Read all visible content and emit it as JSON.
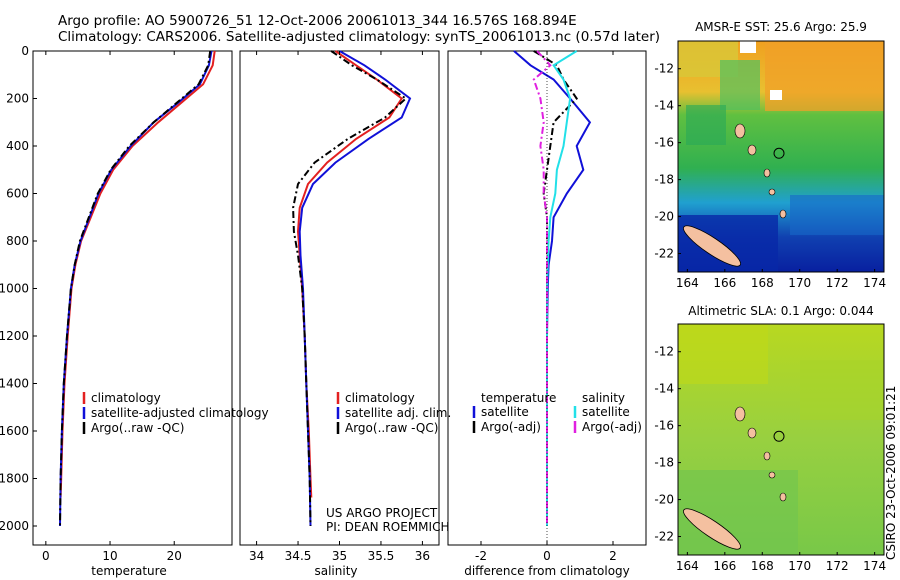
{
  "header": {
    "line1": "Argo profile: AO 5900726_51 12-Oct-2006 20061013_344 16.576S 168.894E",
    "line2": "Climatology: CARS2006. Satellite-adjusted climatology: synTS_20061013.nc (0.57d later)"
  },
  "colors": {
    "red": "#e32020",
    "blue": "#1010d8",
    "black": "#000000",
    "cyan": "#22e0e8",
    "magenta": "#e020e0"
  },
  "chart_data": [
    {
      "type": "line",
      "id": "temperature",
      "xlabel": "temperature",
      "ylabel": "",
      "xlim": [
        -2,
        29
      ],
      "ylim": [
        0,
        2080
      ],
      "y_reversed": true,
      "xticks": [
        0,
        10,
        20
      ],
      "xticklabels": [
        "0",
        "10",
        "20"
      ],
      "yticks": [
        0,
        200,
        400,
        600,
        800,
        1000,
        1200,
        1400,
        1600,
        1800,
        2000
      ],
      "yticklabels": [
        "0",
        "200",
        "400",
        "600",
        "800",
        "1000",
        "1200",
        "1400",
        "1600",
        "1800",
        "2000"
      ],
      "series": [
        {
          "name": "climatology",
          "color": "#e32020",
          "style": "solid",
          "x": [
            26.3,
            26.0,
            24.5,
            21.0,
            17.5,
            13.5,
            10.5,
            8.5,
            7.0,
            5.5,
            4.6,
            4.0,
            3.4,
            2.9,
            2.6,
            2.4,
            2.3
          ],
          "y": [
            0,
            60,
            140,
            220,
            300,
            400,
            500,
            600,
            700,
            800,
            900,
            1000,
            1200,
            1400,
            1600,
            1800,
            1880
          ]
        },
        {
          "name": "satellite-adjusted climatology",
          "color": "#1010d8",
          "style": "solid",
          "x": [
            25.8,
            25.4,
            24.0,
            20.5,
            16.8,
            13.2,
            10.2,
            8.2,
            6.8,
            5.4,
            4.5,
            3.9,
            3.3,
            2.8,
            2.5,
            2.3,
            2.2
          ],
          "y": [
            0,
            60,
            140,
            220,
            300,
            400,
            500,
            600,
            700,
            800,
            900,
            1000,
            1200,
            1400,
            1600,
            1800,
            2000
          ]
        },
        {
          "name": "Argo(..raw -QC)",
          "color": "#000000",
          "style": "dashdot",
          "x": [
            25.6,
            25.3,
            23.8,
            20.3,
            16.8,
            13.0,
            10.1,
            8.1,
            6.7,
            5.3,
            4.5,
            3.9,
            3.3,
            2.8,
            2.5,
            2.3,
            2.2
          ],
          "y": [
            0,
            60,
            140,
            220,
            300,
            400,
            500,
            600,
            700,
            800,
            900,
            1000,
            1200,
            1400,
            1600,
            1800,
            2000
          ]
        }
      ],
      "legend": {
        "entries": [
          "climatology",
          "satellite-adjusted climatology",
          "Argo(..raw -QC)"
        ],
        "placement": "lower-middle"
      }
    },
    {
      "type": "line",
      "id": "salinity",
      "xlabel": "salinity",
      "ylabel": "",
      "xlim": [
        33.8,
        36.2
      ],
      "ylim": [
        0,
        2080
      ],
      "y_reversed": true,
      "xticks": [
        34,
        34.5,
        35,
        35.5,
        36
      ],
      "xticklabels": [
        "34",
        "34.5",
        "35",
        "35.5",
        "36"
      ],
      "series": [
        {
          "name": "climatology",
          "color": "#e32020",
          "style": "solid",
          "x": [
            34.95,
            35.2,
            35.45,
            35.75,
            35.6,
            35.2,
            34.85,
            34.62,
            34.52,
            34.5,
            34.52,
            34.55,
            34.58,
            34.6,
            34.63,
            34.65,
            34.66
          ],
          "y": [
            0,
            60,
            120,
            200,
            280,
            370,
            470,
            560,
            660,
            760,
            860,
            1000,
            1200,
            1400,
            1600,
            1800,
            1880
          ]
        },
        {
          "name": "satellite adj. clim.",
          "color": "#1010d8",
          "style": "solid",
          "x": [
            35.0,
            35.3,
            35.55,
            35.85,
            35.75,
            35.35,
            34.95,
            34.68,
            34.55,
            34.52,
            34.53,
            34.56,
            34.58,
            34.6,
            34.62,
            34.64,
            34.65
          ],
          "y": [
            0,
            60,
            120,
            200,
            280,
            370,
            470,
            560,
            660,
            760,
            860,
            1000,
            1200,
            1400,
            1600,
            1800,
            2000
          ]
        },
        {
          "name": "Argo(..raw -QC)",
          "color": "#000000",
          "style": "dashdot",
          "x": [
            34.9,
            35.15,
            35.45,
            35.8,
            35.55,
            35.1,
            34.7,
            34.5,
            34.44,
            34.45,
            34.5,
            34.55,
            34.58,
            34.6,
            34.62,
            34.64,
            34.65
          ],
          "y": [
            0,
            60,
            120,
            200,
            280,
            370,
            470,
            560,
            660,
            760,
            860,
            1000,
            1200,
            1400,
            1600,
            1800,
            2000
          ]
        }
      ],
      "legend": {
        "entries": [
          "climatology",
          "satellite adj. clim.",
          "Argo(..raw -QC)"
        ],
        "placement": "lower-middle"
      },
      "annotation": {
        "line1": "US ARGO PROJECT",
        "line2": "PI: DEAN ROEMMICH"
      }
    },
    {
      "type": "line",
      "id": "difference",
      "xlabel": "difference from climatology",
      "ylabel": "",
      "xlim": [
        -3,
        3
      ],
      "ylim": [
        0,
        2080
      ],
      "y_reversed": true,
      "xticks": [
        -2,
        0,
        2
      ],
      "xticklabels": [
        "-2",
        "0",
        "2"
      ],
      "series": [
        {
          "name": "temperature satellite",
          "color": "#1010d8",
          "style": "solid",
          "x": [
            -1.0,
            -0.5,
            0.2,
            0.7,
            1.3,
            0.9,
            1.1,
            0.6,
            0.2,
            0.15,
            0.05,
            0.02,
            0.0,
            0.0,
            0.0,
            0.0,
            0.0
          ],
          "y": [
            0,
            60,
            120,
            200,
            300,
            400,
            500,
            600,
            700,
            800,
            900,
            1000,
            1200,
            1400,
            1600,
            1800,
            2000
          ]
        },
        {
          "name": "temperature Argo(-adj)",
          "color": "#000000",
          "style": "dashdot",
          "x": [
            -0.4,
            0.3,
            0.5,
            0.9,
            0.2,
            0.1,
            0.0,
            -0.1,
            0.0,
            0.0,
            0.0,
            0.0,
            0.0,
            0.0,
            0.0,
            0.0,
            0.0
          ],
          "y": [
            0,
            60,
            120,
            200,
            300,
            400,
            500,
            600,
            700,
            800,
            900,
            1000,
            1200,
            1400,
            1600,
            1800,
            2000
          ]
        },
        {
          "name": "salinity satellite",
          "color": "#22e0e8",
          "style": "solid",
          "x": [
            0.9,
            0.2,
            0.5,
            0.7,
            0.6,
            0.5,
            0.3,
            0.25,
            0.1,
            0.05,
            0.02,
            0.0,
            0.0,
            0.0,
            0.0,
            0.0,
            0.0
          ],
          "y": [
            0,
            60,
            120,
            200,
            300,
            400,
            500,
            600,
            700,
            800,
            900,
            1000,
            1200,
            1400,
            1600,
            1800,
            2000
          ]
        },
        {
          "name": "salinity Argo(-adj)",
          "color": "#e020e0",
          "style": "dashdot",
          "x": [
            -0.3,
            0.1,
            -0.4,
            -0.2,
            -0.1,
            -0.2,
            -0.1,
            -0.1,
            0.0,
            0.0,
            0.0,
            0.0,
            0.0,
            0.0,
            0.0,
            0.0,
            0.0
          ],
          "y": [
            0,
            60,
            120,
            200,
            300,
            400,
            500,
            600,
            700,
            800,
            900,
            1000,
            1200,
            1400,
            1600,
            1800,
            2000
          ]
        }
      ],
      "legend": {
        "group1": "temperature",
        "group2": "salinity",
        "entries": [
          "satellite",
          "Argo(-adj)",
          "satellite",
          "Argo(-adj)"
        ],
        "placement": "lower-middle"
      }
    },
    {
      "type": "heatmap",
      "id": "sst-map",
      "title": "AMSR-E SST: 25.6 Argo: 25.9",
      "xlim": [
        163.5,
        174.5
      ],
      "ylim": [
        -23,
        -10.5
      ],
      "xticks": [
        164,
        166,
        168,
        170,
        172,
        174
      ],
      "xticklabels": [
        "164",
        "166",
        "168",
        "170",
        "172",
        "174"
      ],
      "yticks": [
        -12,
        -14,
        -16,
        -18,
        -20,
        -22
      ],
      "yticklabels": [
        "-12",
        "-14",
        "-16",
        "-18",
        "-20",
        "-22"
      ],
      "profile_location": {
        "lon": 168.894,
        "lat": -16.576
      }
    },
    {
      "type": "heatmap",
      "id": "sla-map",
      "title": "Altimetric SLA: 0.1 Argo: 0.044",
      "xlim": [
        163.5,
        174.5
      ],
      "ylim": [
        -23,
        -10.5
      ],
      "xticks": [
        164,
        166,
        168,
        170,
        172,
        174
      ],
      "xticklabels": [
        "164",
        "166",
        "168",
        "170",
        "172",
        "174"
      ],
      "yticks": [
        -12,
        -14,
        -16,
        -18,
        -20,
        -22
      ],
      "yticklabels": [
        "-12",
        "-14",
        "-16",
        "-18",
        "-20",
        "-22"
      ],
      "profile_location": {
        "lon": 168.894,
        "lat": -16.576
      }
    }
  ],
  "footer": {
    "stamp": "CSIRO 23-Oct-2006 09:01:21"
  }
}
